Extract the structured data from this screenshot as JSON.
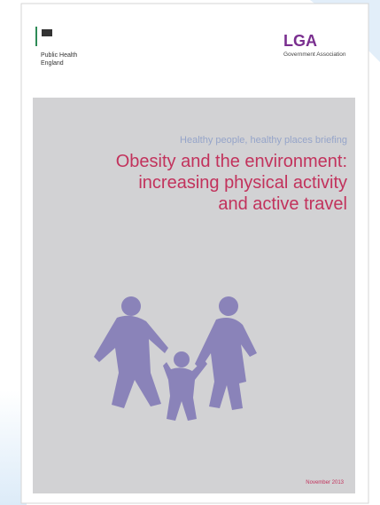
{
  "header": {
    "left_logo": [
      "Public Health",
      "England"
    ],
    "right_logo": "LGA",
    "right_logo_caption": "Government Association"
  },
  "cover": {
    "subtitle": "Healthy people, healthy places briefing",
    "title_lines": [
      "Obesity and the environment:",
      "increasing physical activity",
      "and active travel"
    ],
    "date": "November 2013"
  }
}
